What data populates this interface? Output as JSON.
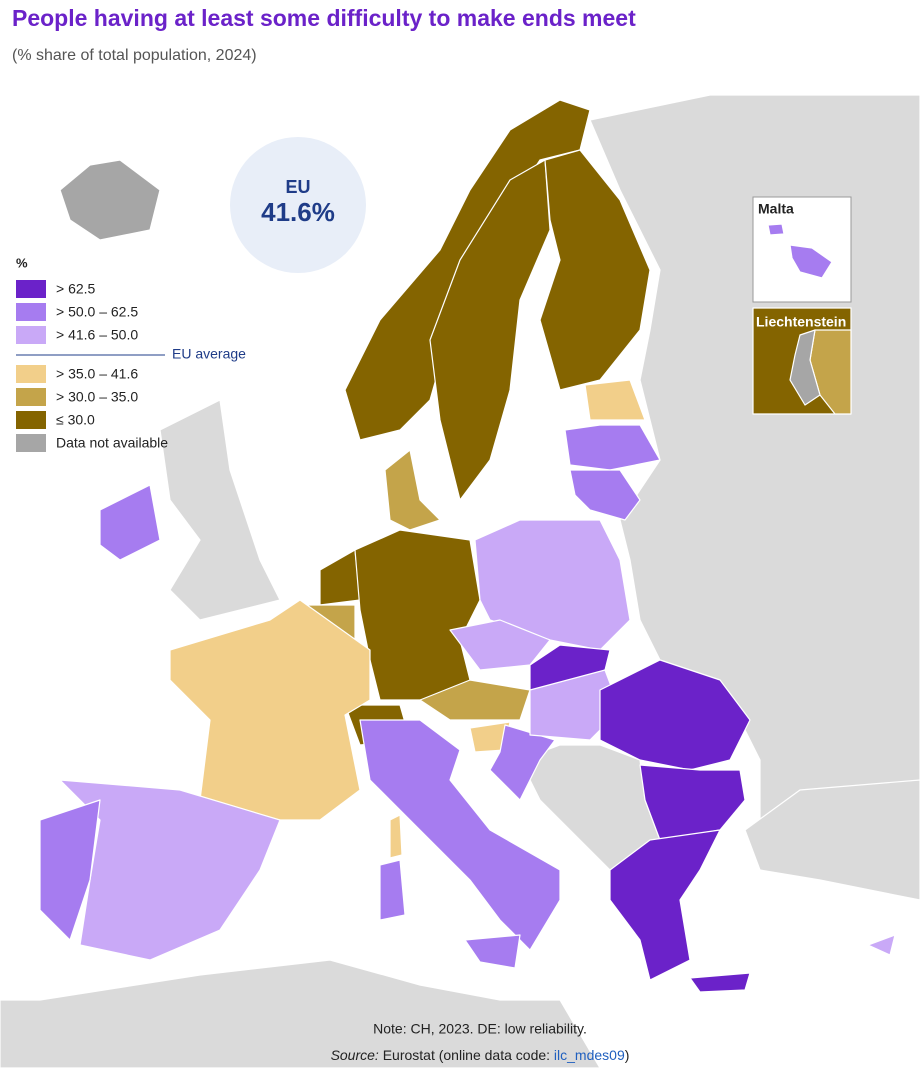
{
  "header": {
    "title": "People having at least some difficulty to make ends meet",
    "subtitle": "(% share of total population, 2024)"
  },
  "eu_badge": {
    "label": "EU",
    "value": "41.6%"
  },
  "legend": {
    "unit": "%",
    "eu_average_label": "EU average",
    "items": [
      {
        "label": "> 62.5",
        "color": "#6b22c9"
      },
      {
        "label": "> 50.0 – 62.5",
        "color": "#a67cf0"
      },
      {
        "label": "> 41.6 – 50.0",
        "color": "#c9a9f7"
      },
      {
        "label": "> 35.0 – 41.6",
        "color": "#f2cf8a"
      },
      {
        "label": "> 30.0 – 35.0",
        "color": "#c4a44a"
      },
      {
        "label": "≤ 30.0",
        "color": "#846400"
      },
      {
        "label": "Data not available",
        "color": "#a6a6a6"
      }
    ]
  },
  "insets": [
    {
      "label": "Malta"
    },
    {
      "label": "Liechtenstein"
    }
  ],
  "footer": {
    "note": "Note: CH, 2023. DE: low reliability.",
    "source_label": "Source:",
    "source_text": " Eurostat (online data code: ",
    "source_code": "ilc_mdes09",
    "source_close": ")"
  }
}
